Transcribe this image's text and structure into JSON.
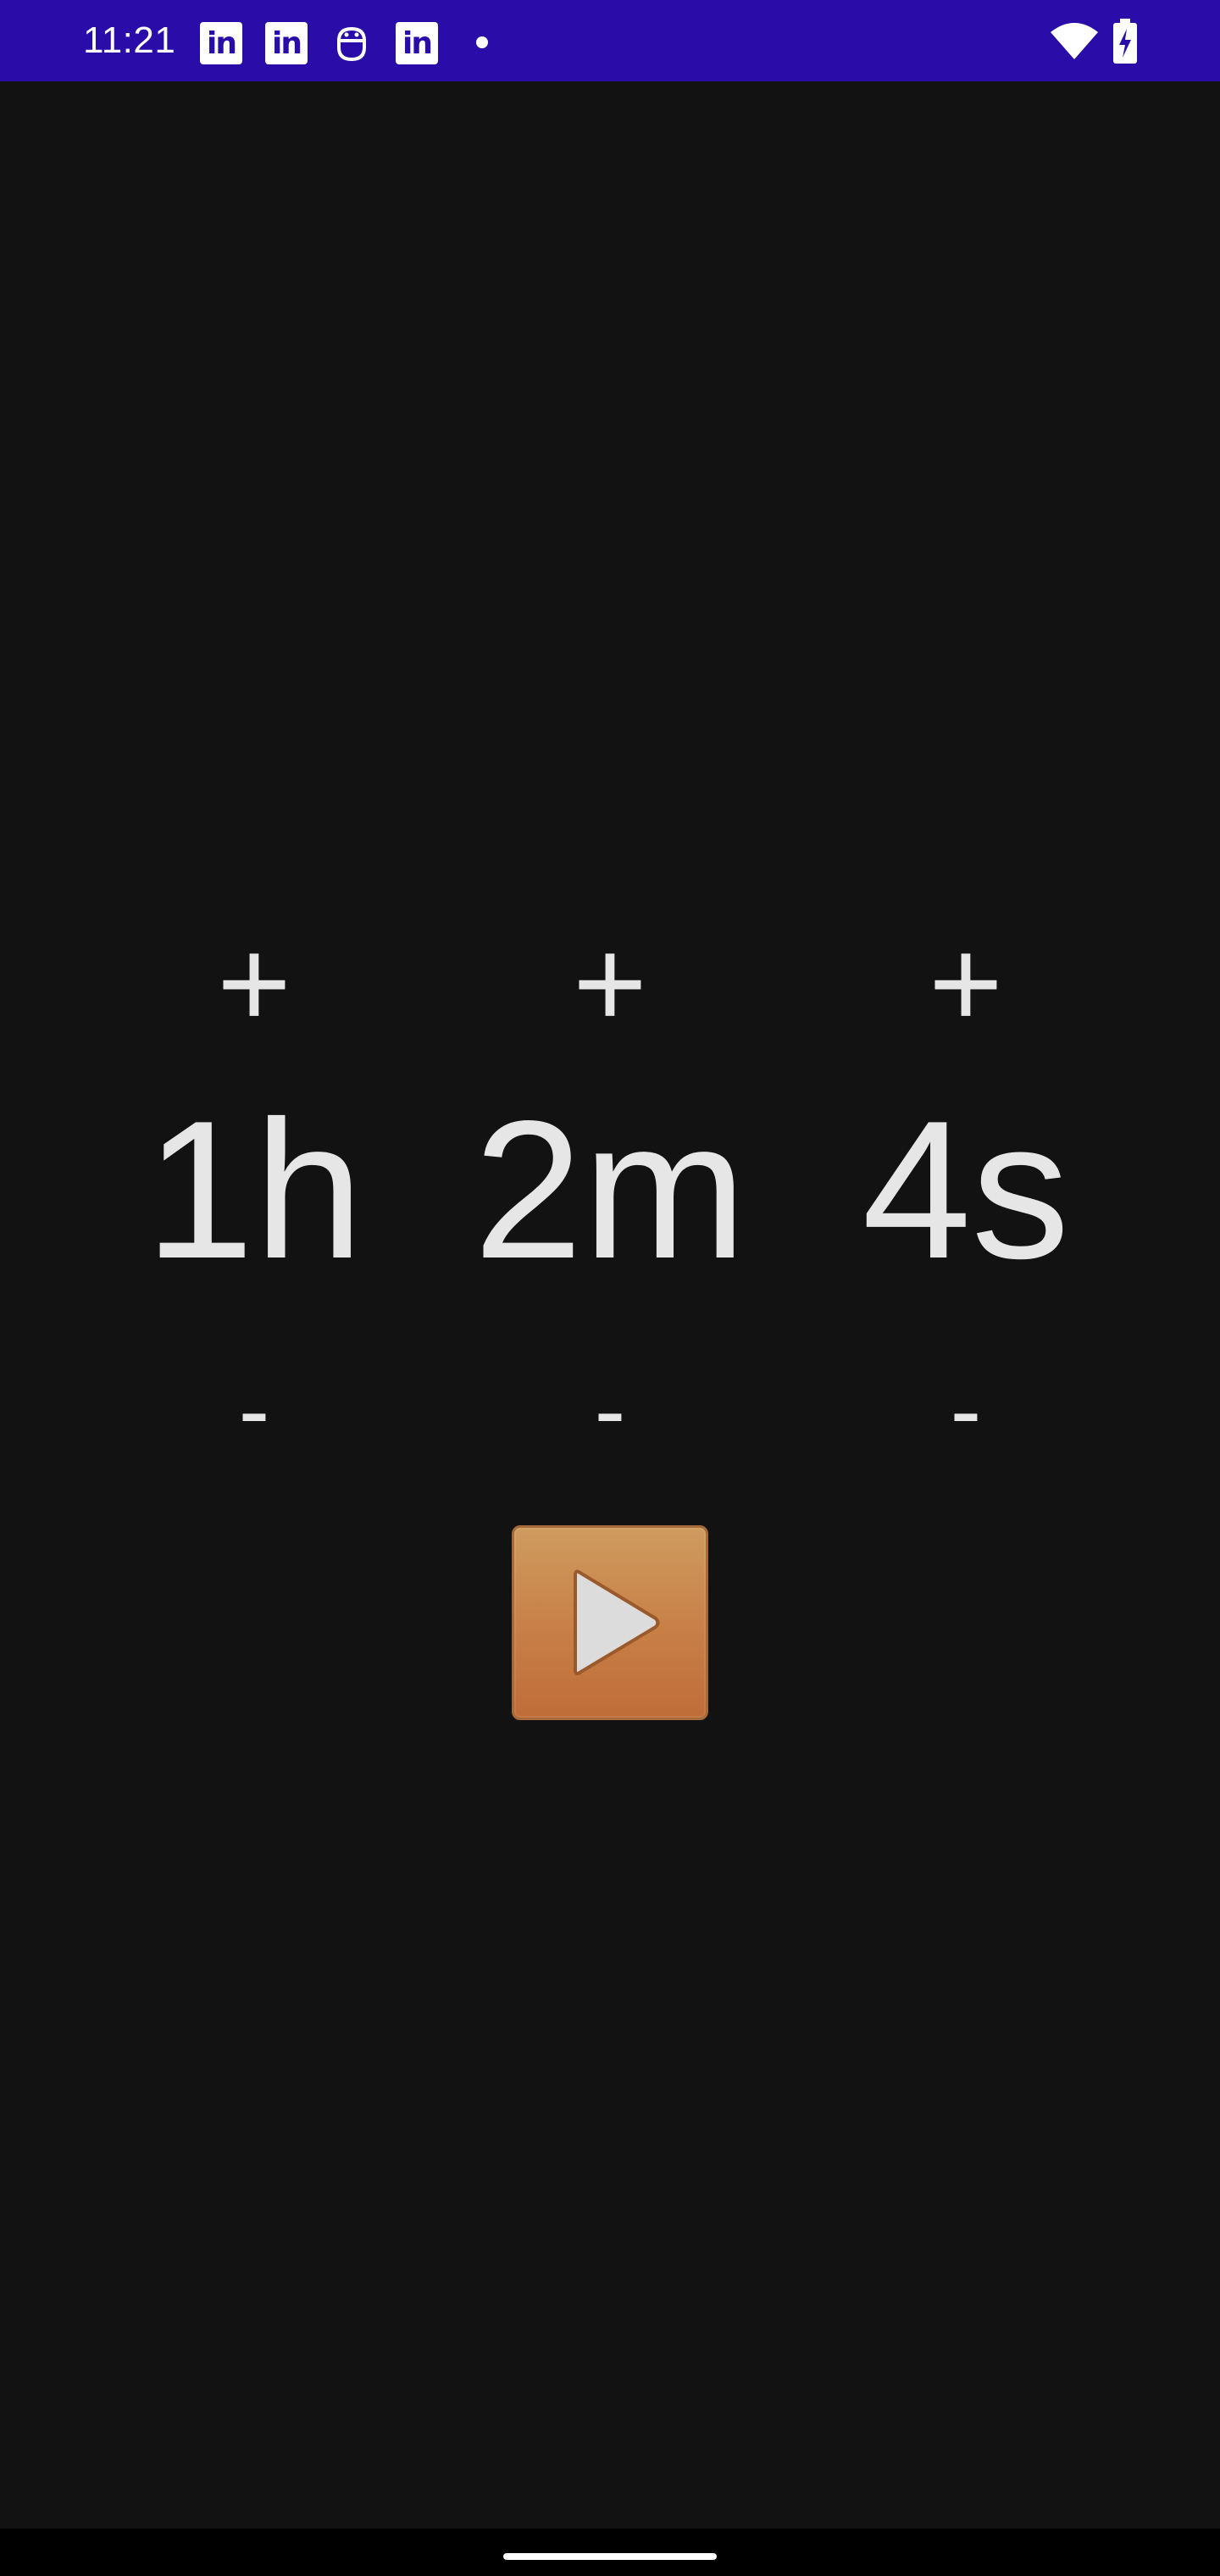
{
  "status_bar": {
    "time": "11:21",
    "notification_icons": [
      "linkedin-icon",
      "linkedin-icon",
      "robot-icon",
      "linkedin-icon",
      "dot-icon"
    ],
    "linkedin_glyph": "in",
    "right_icons": [
      "wifi-icon",
      "battery-charging-icon"
    ],
    "background_color": "#2a0ca8"
  },
  "timer": {
    "hours": {
      "increment_label": "+",
      "value": "1h",
      "decrement_label": "-"
    },
    "minutes": {
      "increment_label": "+",
      "value": "2m",
      "decrement_label": "-"
    },
    "seconds": {
      "increment_label": "+",
      "value": "4s",
      "decrement_label": "-"
    }
  },
  "play_button": {
    "icon": "play-icon",
    "color": "#c77f46"
  },
  "theme": {
    "background": "#121212",
    "text": "#e6e6e6"
  }
}
